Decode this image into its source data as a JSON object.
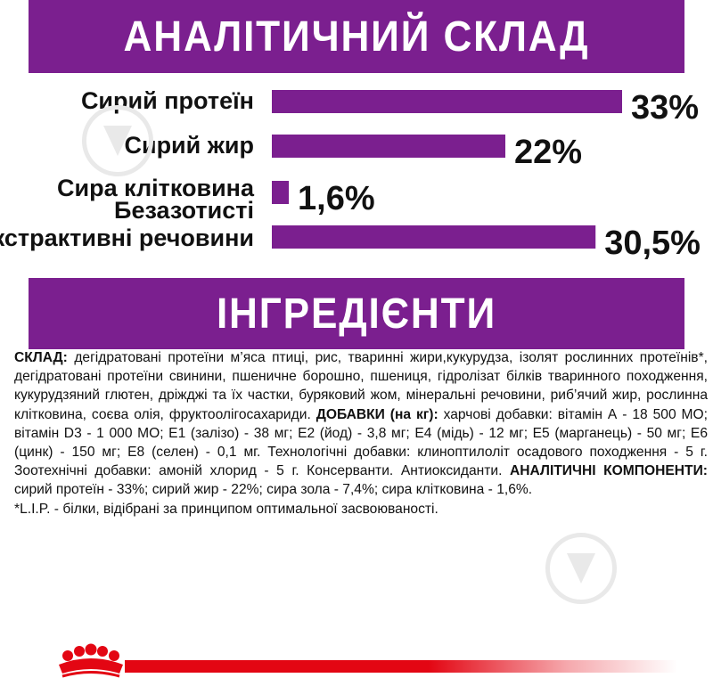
{
  "colors": {
    "accent": "#7b1f8f",
    "brand_red": "#e30613",
    "text": "#111111"
  },
  "sections": {
    "analysis_title": "АНАЛІТИЧНИЙ СКЛАД",
    "ingredients_title": "ІНГРЕДІЄНТИ"
  },
  "chart_data": {
    "type": "bar",
    "orientation": "horizontal",
    "categories": [
      "Сирий протеїн",
      "Сирий жир",
      "Сира клітковина",
      "Безазотисті екстрактивні речовини"
    ],
    "category_lines": [
      [
        "Сирий протеїн"
      ],
      [
        "Сирий жир"
      ],
      [
        "Сира клітковина"
      ],
      [
        "Безазотисті",
        "екстрактивні речовини"
      ]
    ],
    "values": [
      33,
      22,
      1.6,
      30.5
    ],
    "value_labels": [
      "33%",
      "22%",
      "1,6%",
      "30,5%"
    ],
    "unit": "%",
    "xlim": [
      0,
      33
    ],
    "grid": false,
    "legend": "none",
    "bar_color": "#7b1f8f"
  },
  "ingredients": {
    "composition_label": "СКЛАД:",
    "composition_text": " дегідратовані протеїни м’яса птиці, рис, тваринні жири,кукурудза, ізолят рослинних протеїнів*, дегідратовані протеїни свинини, пшеничне борошно, пшениця, гідролізат білків тваринного походження, кукурудзяний глютен, дріжджі та їх частки, буряковий жом, мінеральні речовини, риб’ячий жир, рослинна клітковина, соєва олія, фруктоолігосахариди. ",
    "additives_label": "ДОБАВКИ (на кг):",
    "additives_text": " харчові добавки: вітамін А - 18 500 МО; вітамін D3 - 1 000 МО; Е1 (залізо) - 38 мг; Е2 (йод) - 3,8 мг; Е4 (мідь) - 12 мг; Е5 (марганець) - 50 мг; Е6 (цинк) - 150 мг; Е8 (селен) - 0,1 мг.  Технологічні добавки: клинoптилоліт осадового походження - 5 г. Зоотехнічні добавки: амоній хлорид - 5 г. Консерванти. Антиоксиданти.  ",
    "components_label": "АНАЛІТИЧНІ КОМПОНЕНТИ:",
    "components_text": " сирий протеїн - 33%; сирий жир - 22%; сира зола - 7,4%; сира клітковина - 1,6%.",
    "footnote": "*L.I.P. - білки, відібрані за принципом оптимальної засвоюваності."
  },
  "icons": {
    "watermark": "download-watermark-icon",
    "logo": "crown-logo-icon"
  }
}
